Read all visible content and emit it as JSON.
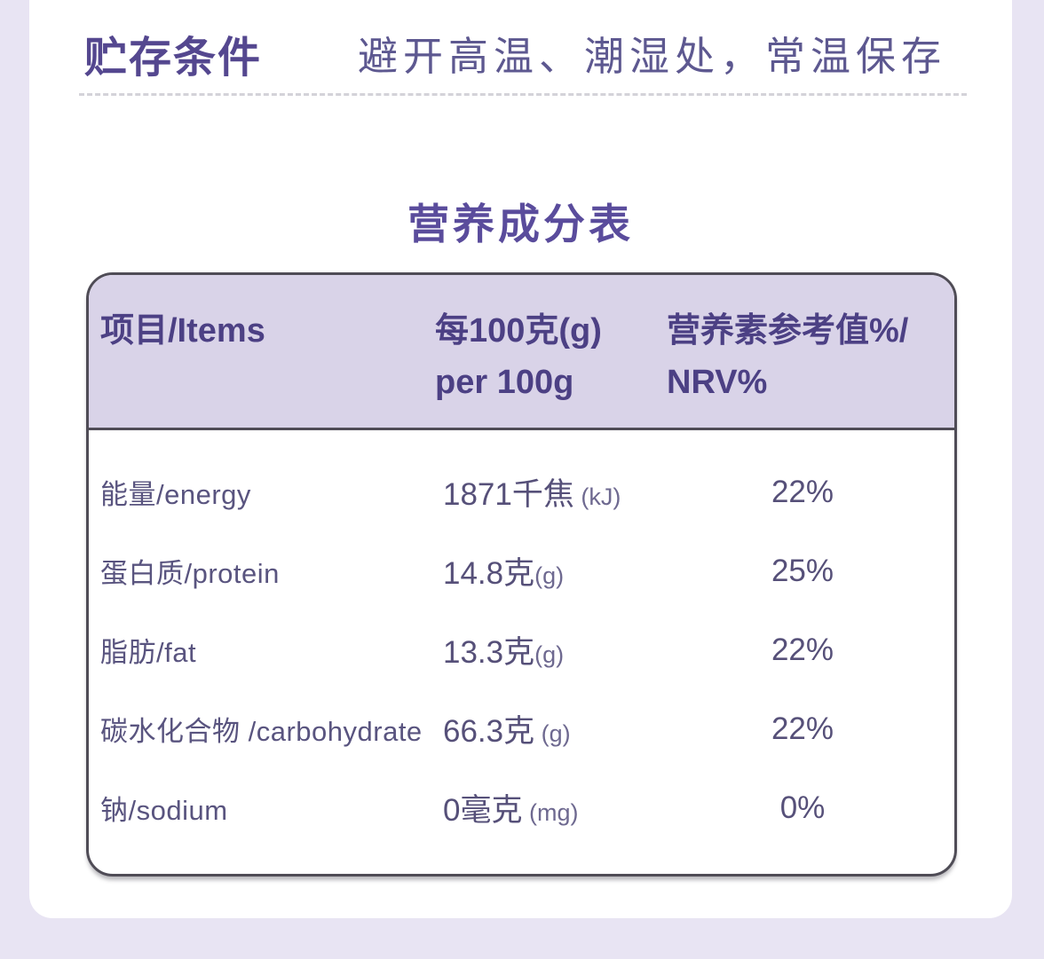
{
  "colors": {
    "page_background": "#e8e4f3",
    "card_background": "#ffffff",
    "table_header_background": "#d9d3e8",
    "table_border": "#4f4c56",
    "accent_purple_bold": "#54478f",
    "body_text_purple": "#59547f"
  },
  "storage": {
    "label": "贮存条件",
    "value": "避开高温、潮湿处，常温保存"
  },
  "nutrition": {
    "title": "营养成分表",
    "table": {
      "header": {
        "items": "项目/Items",
        "per100_line1": "每100克(g)",
        "per100_line2": "per 100g",
        "nrv_line1": "营养素参考值%/",
        "nrv_line2": "NRV%"
      },
      "rows": [
        {
          "item": "能量/energy",
          "amount": "1871千焦",
          "unit": " (kJ)",
          "nrv": "22%"
        },
        {
          "item": "蛋白质/protein",
          "amount": "14.8克",
          "unit": "(g)",
          "nrv": "25%"
        },
        {
          "item": "脂肪/fat",
          "amount": "13.3克",
          "unit": "(g)",
          "nrv": "22%"
        },
        {
          "item": "碳水化合物 /carbohydrate",
          "amount": "66.3克",
          "unit": " (g)",
          "nrv": "22%"
        },
        {
          "item": "钠/sodium",
          "amount": "0毫克",
          "unit": " (mg)",
          "nrv": "0%"
        }
      ]
    }
  }
}
